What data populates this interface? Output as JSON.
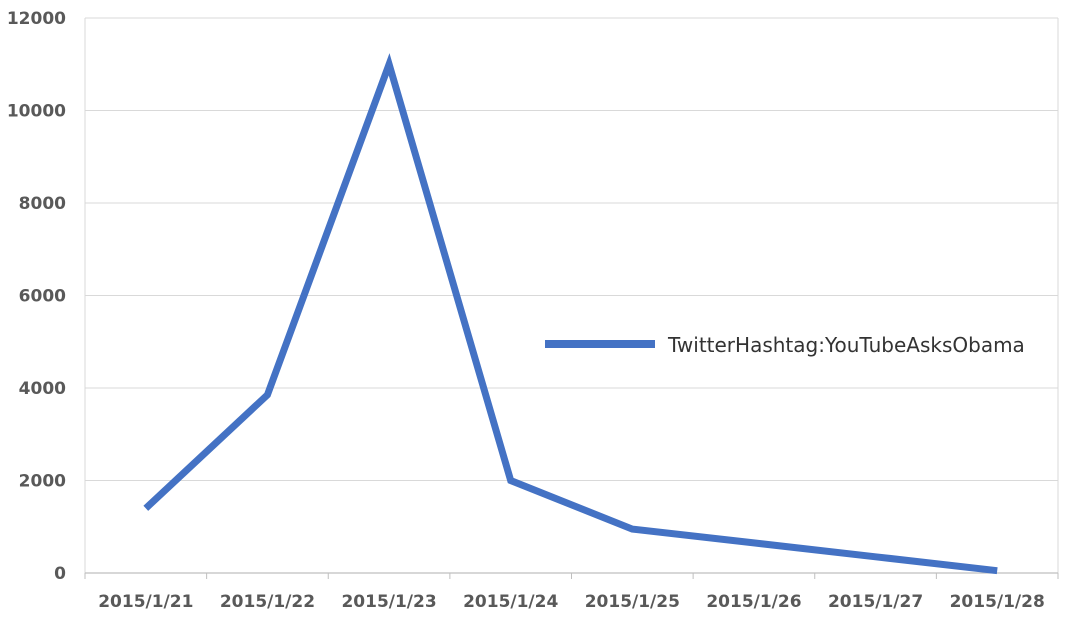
{
  "chart_data": {
    "type": "line",
    "title": "",
    "xlabel": "",
    "ylabel": "",
    "categories": [
      "2015/1/21",
      "2015/1/22",
      "2015/1/23",
      "2015/1/24",
      "2015/1/25",
      "2015/1/26",
      "2015/1/27",
      "2015/1/28"
    ],
    "series": [
      {
        "name": "TwitterHashtag:YouTubeAsksObama",
        "color": "#4472C4",
        "points": [
          {
            "x": "2015/1/21",
            "y": 1400
          },
          {
            "x": "2015/1/22",
            "y": 3850
          },
          {
            "x": "2015/1/23",
            "y": 11000
          },
          {
            "x": "2015/1/24",
            "y": 2000
          },
          {
            "x": "2015/1/25",
            "y": 950
          },
          {
            "x": "2015/1/26",
            "y": 650
          },
          {
            "x": "2015/1/27",
            "y": 350
          },
          {
            "x": "2015/1/28",
            "y": 50
          }
        ]
      }
    ],
    "ylim": [
      0,
      12000
    ],
    "yticks": [
      "0",
      "2000",
      "4000",
      "6000",
      "8000",
      "10000",
      "12000"
    ],
    "grid": true,
    "legend_position": "right"
  }
}
